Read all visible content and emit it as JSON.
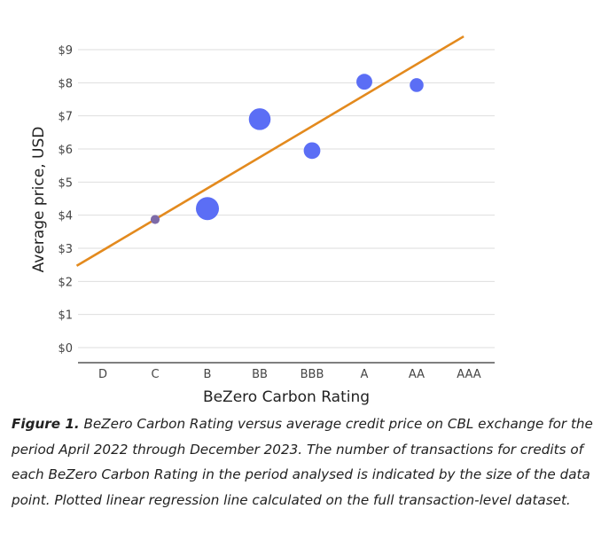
{
  "chart_data": {
    "type": "scatter",
    "xlabel": "BeZero Carbon Rating",
    "ylabel": "Average price, USD",
    "categories": [
      "D",
      "C",
      "B",
      "BB",
      "BBB",
      "A",
      "AA",
      "AAA"
    ],
    "y_ticks": [
      "$0",
      "$1",
      "$2",
      "$3",
      "$4",
      "$5",
      "$6",
      "$7",
      "$8",
      "$9"
    ],
    "ylim": [
      0,
      9
    ],
    "grid": "horizontal",
    "points": [
      {
        "category": "C",
        "value": 3.87,
        "relative_size": 0.12
      },
      {
        "category": "B",
        "value": 4.2,
        "relative_size": 1.0
      },
      {
        "category": "BB",
        "value": 6.9,
        "relative_size": 0.92
      },
      {
        "category": "BBB",
        "value": 5.95,
        "relative_size": 0.6
      },
      {
        "category": "A",
        "value": 8.03,
        "relative_size": 0.55
      },
      {
        "category": "AA",
        "value": 7.93,
        "relative_size": 0.42
      }
    ],
    "regression_line": {
      "x_start": -0.5,
      "y_start": 2.47,
      "x_end": 6.9,
      "y_end": 9.4
    },
    "colors": {
      "points": "#5b6ef5",
      "small_point": "#7d6aa8",
      "line": "#e38a1e",
      "grid": "#dedede",
      "axis": "#333333"
    }
  },
  "caption": {
    "lead": "Figure 1.",
    "text": " BeZero Carbon Rating versus average credit price on CBL exchange for the period April 2022 through December 2023. The number of transactions for credits of each BeZero Carbon Rating in the period analysed is indicated by the size of the data point. Plotted linear regression line calculated on the full transaction-level dataset."
  }
}
